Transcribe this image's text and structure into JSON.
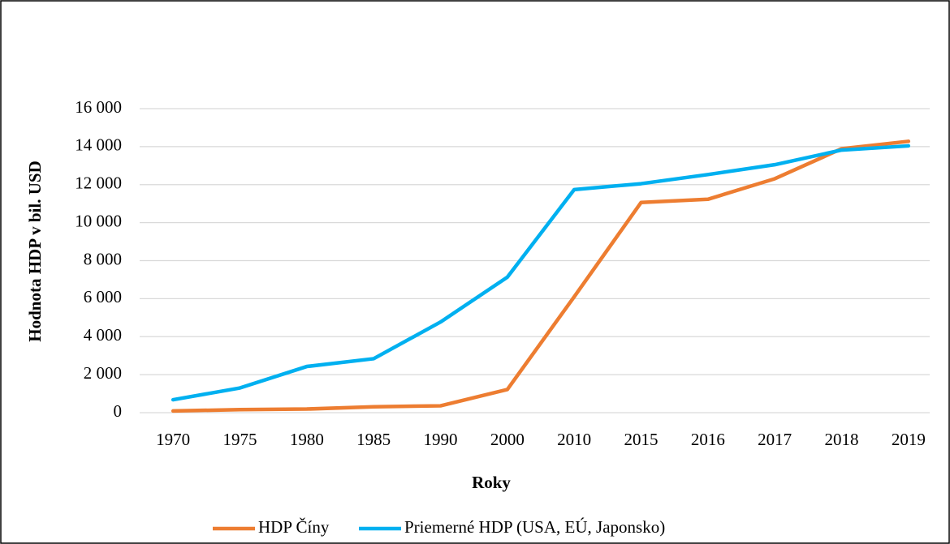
{
  "chart_data": {
    "type": "line",
    "categories": [
      "1970",
      "1975",
      "1980",
      "1985",
      "1990",
      "2000",
      "2010",
      "2015",
      "2016",
      "2017",
      "2018",
      "2019"
    ],
    "series": [
      {
        "name": "HDP Číny",
        "color": "#ed7d31",
        "values": [
          90,
          160,
          190,
          310,
          360,
          1220,
          6100,
          11060,
          11230,
          12310,
          13890,
          14280
        ]
      },
      {
        "name": "Priemerné HDP (USA, EÚ, Japonsko)",
        "color": "#00b0f0",
        "values": [
          680,
          1300,
          2430,
          2840,
          4770,
          7130,
          11740,
          12050,
          12530,
          13050,
          13820,
          14040
        ]
      }
    ],
    "xlabel": "Roky",
    "ylabel": "Hodnota HDP v bil. USD",
    "ylim": [
      0,
      16000
    ],
    "yticks": [
      0,
      {
        "value": 2000,
        "label": "2 000"
      },
      {
        "value": 4000,
        "label": "4 000"
      },
      {
        "value": 6000,
        "label": "6 000"
      },
      {
        "value": 8000,
        "label": "8 000"
      },
      {
        "value": 10000,
        "label": "10 000"
      },
      {
        "value": 12000,
        "label": "12 000"
      },
      {
        "value": 14000,
        "label": "14 000"
      },
      {
        "value": 16000,
        "label": "16 000"
      }
    ],
    "grid": true,
    "legend": "bottom"
  }
}
